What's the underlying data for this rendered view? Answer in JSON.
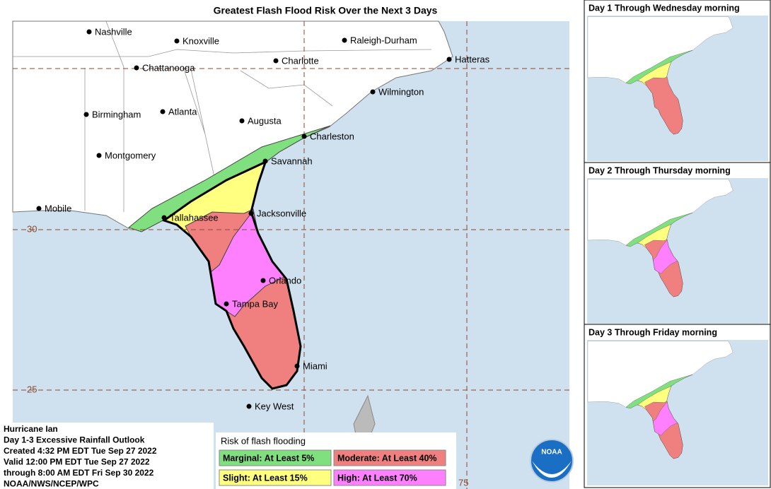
{
  "header": {
    "title": "Greatest Flash Flood Risk Over the Next 3 Days"
  },
  "map": {
    "cities": [
      "Nashville",
      "Knoxville",
      "Charlotte",
      "Raleigh-Durham",
      "Hatteras",
      "Chattanooga",
      "Wilmington",
      "Birmingham",
      "Atlanta",
      "Augusta",
      "Charleston",
      "Montgomery",
      "Savannah",
      "Mobile",
      "Tallahassee",
      "Jacksonville",
      "Orlando",
      "Tampa Bay",
      "Miami",
      "Key West"
    ],
    "latitude_labels": [
      "30",
      "25"
    ],
    "longitude_labels": [
      "75"
    ]
  },
  "info": {
    "lines": [
      "Hurricane Ian",
      "Day 1-3 Excessive Rainfall Outlook",
      "Created 4:32 PM EDT Tue Sep 27 2022",
      "Valid 12:00 PM EDT Tue Sep 27 2022",
      "through 8:00 AM EDT Fri Sep 30 2022",
      "NOAA/NWS/NCEP/WPC"
    ]
  },
  "legend": {
    "title": "Risk of flash flooding",
    "items": [
      {
        "label": "Marginal: At Least 5%",
        "color": "#80e080"
      },
      {
        "label": "Moderate: At Least 40%",
        "color": "#f08080"
      },
      {
        "label": "Slight: At Least 15%",
        "color": "#ffff80"
      },
      {
        "label": "High: At Least 70%",
        "color": "#ff80ff"
      }
    ]
  },
  "logo": {
    "text": "NOAA"
  },
  "panels": [
    {
      "title": "Day 1 Through Wednesday morning"
    },
    {
      "title": "Day 2 Through Thursday morning"
    },
    {
      "title": "Day 3 Through Friday morning"
    }
  ]
}
